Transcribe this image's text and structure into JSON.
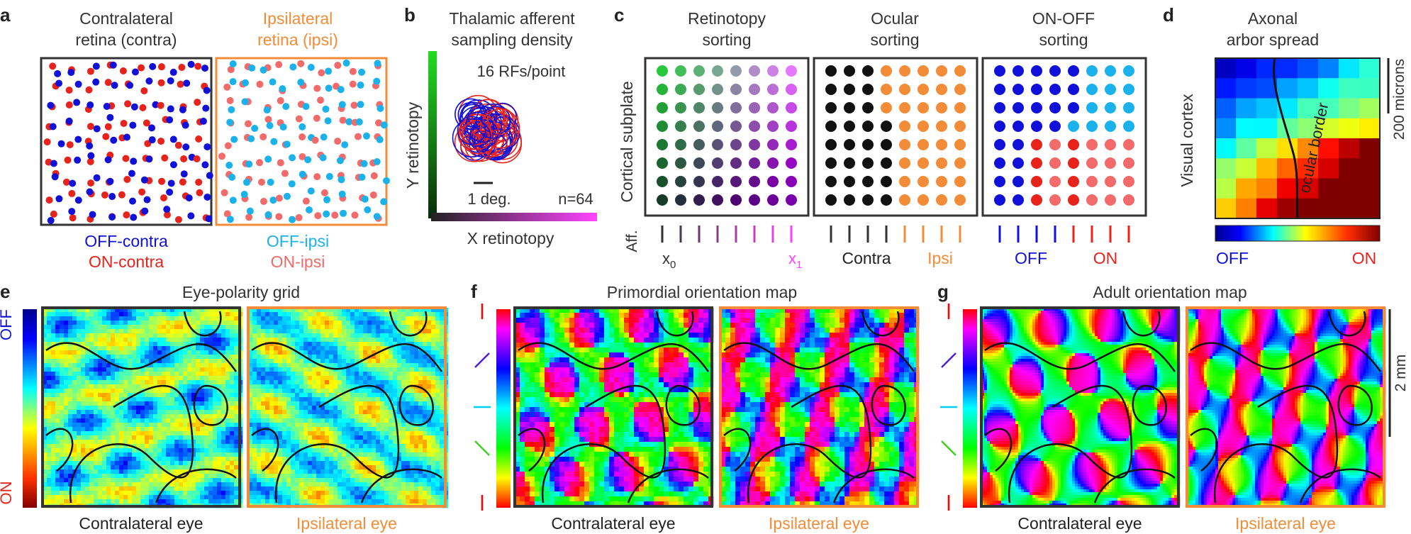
{
  "colors": {
    "off_contra": "#1010d8",
    "on_contra": "#e8231c",
    "off_ipsi": "#1bb2ec",
    "on_ipsi": "#f26a6a",
    "ipsi_accent": "#f28c38",
    "contra_border": "#333333",
    "retino_magenta": "#ff44ff",
    "retino_green": "#1db31d"
  },
  "panels": {
    "a": {
      "letter": "a",
      "contra_title": [
        "Contralateral",
        "retina (contra)"
      ],
      "ipsi_title": [
        "Ipsilateral",
        "retina (ipsi)"
      ],
      "contra_legend": [
        "OFF-contra",
        "ON-contra"
      ],
      "ipsi_legend": [
        "OFF-ipsi",
        "ON-ipsi"
      ]
    },
    "b": {
      "letter": "b",
      "title": [
        "Thalamic afferent",
        "sampling density"
      ],
      "density": "16 RFs/point",
      "scale": "1 deg.",
      "n": "n=64",
      "ylabel": "Y retinotopy",
      "xlabel": "X retinotopy"
    },
    "c": {
      "letter": "c",
      "titles": [
        [
          "Retinotopy",
          "sorting"
        ],
        [
          "Ocular",
          "sorting"
        ],
        [
          "ON-OFF",
          "sorting"
        ]
      ],
      "ylabel": "Cortical subplate",
      "aff": "Aff.",
      "x0": "x",
      "x0_sub": "0",
      "x1": "x",
      "x1_sub": "1",
      "contra": "Contra",
      "ipsi": "Ipsi",
      "off": "OFF",
      "on": "ON"
    },
    "d": {
      "letter": "d",
      "title": [
        "Axonal",
        "arbor spread"
      ],
      "ylabel": "Visual cortex",
      "border": "ocular border",
      "scale": "200 microns",
      "off": "OFF",
      "on": "ON"
    },
    "e": {
      "letter": "e",
      "title": "Eye-polarity grid",
      "off": "OFF",
      "on": "ON",
      "contra": "Contralateral eye",
      "ipsi": "Ipsilateral eye"
    },
    "f": {
      "letter": "f",
      "title": "Primordial orientation map",
      "contra": "Contralateral eye",
      "ipsi": "Ipsilateral eye"
    },
    "g": {
      "letter": "g",
      "title": "Adult orientation map",
      "contra": "Contralateral eye",
      "ipsi": "Ipsilateral eye",
      "scale": "2 mm"
    }
  }
}
